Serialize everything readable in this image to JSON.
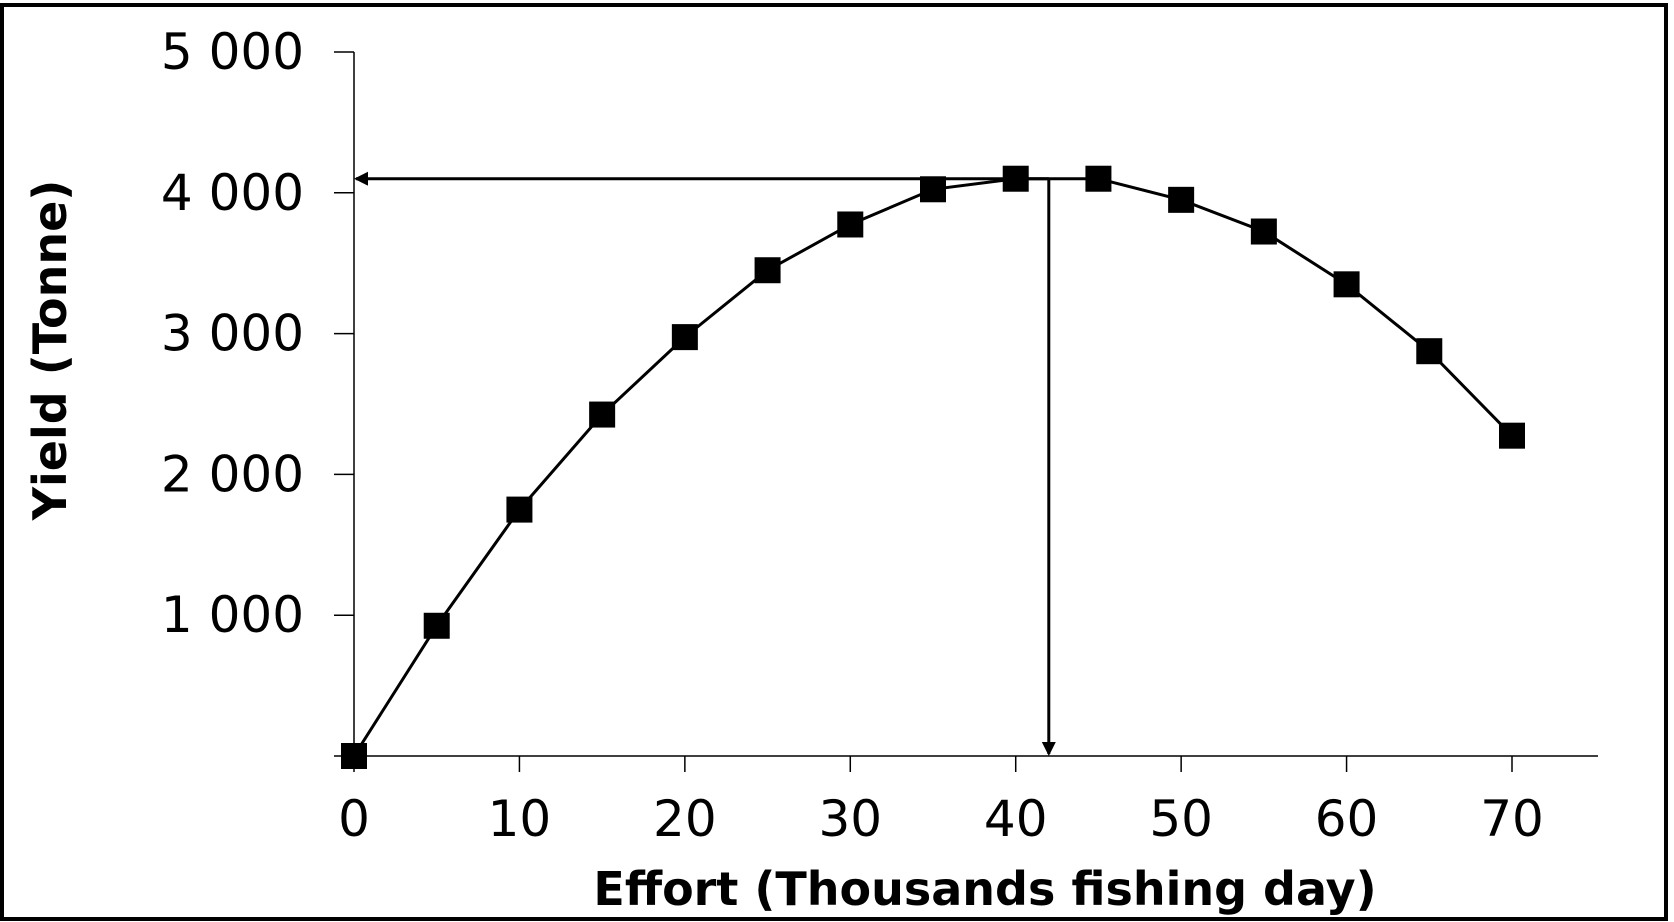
{
  "chart_data": {
    "type": "line",
    "title": "",
    "xlabel": "Effort (Thousands fishing day)",
    "ylabel": "Yield (Tonne)",
    "xlim": [
      0,
      75
    ],
    "ylim": [
      0,
      5000
    ],
    "x_ticks": [
      0,
      10,
      20,
      30,
      40,
      50,
      60,
      70
    ],
    "x_tick_labels": [
      "0",
      "10",
      "20",
      "30",
      "40",
      "50",
      "60",
      "70"
    ],
    "y_ticks": [
      1000,
      2000,
      3000,
      4000,
      5000
    ],
    "y_tick_labels": [
      "1 000",
      "2 000",
      "3 000",
      "4 000",
      "5 000"
    ],
    "grid": false,
    "legend": "none",
    "marker": "square",
    "line_color": "#000000",
    "series": [
      {
        "x": [
          0,
          5,
          10,
          15,
          20,
          25,
          30,
          35,
          40,
          45,
          50,
          55,
          60,
          65,
          70
        ],
        "values": [
          0,
          925,
          1750,
          2425,
          2975,
          3450,
          3775,
          4025,
          4100,
          4100,
          3950,
          3725,
          3350,
          2875,
          2275
        ]
      }
    ],
    "annotations": {
      "msy_yield": 4100,
      "msy_effort": 42,
      "arrow_to_y_axis": true,
      "arrow_to_x_axis": true
    }
  }
}
